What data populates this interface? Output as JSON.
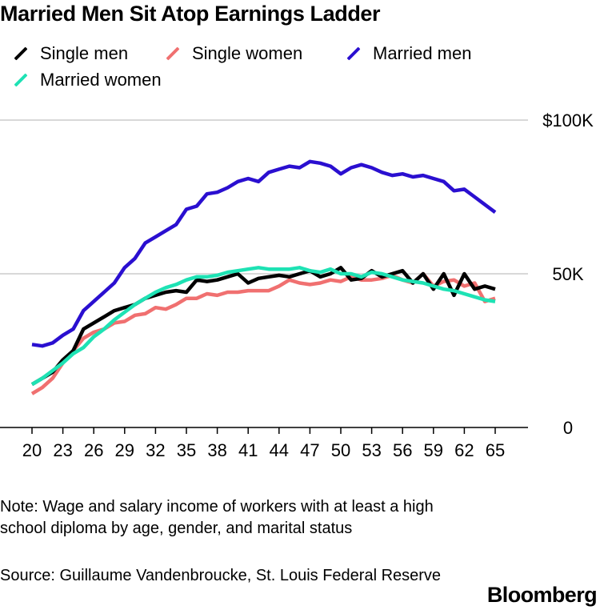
{
  "title": "Married Men Sit Atop Earnings Ladder",
  "note": "Note: Wage and salary income of workers with at least a high school diploma by age, gender, and marital status",
  "source": "Source: Guillaume Vandenbroucke, St. Louis Federal Reserve",
  "brand": "Bloomberg",
  "colors": {
    "single_men": "#000000",
    "single_women": "#f07070",
    "married_men": "#2a0fd0",
    "married_women": "#1ee2b4",
    "grid": "#cccccc",
    "axis": "#000000"
  },
  "chart_data": {
    "type": "line",
    "title": "Married Men Sit Atop Earnings Ladder",
    "xlabel": "",
    "ylabel": "",
    "xlim": [
      20,
      65
    ],
    "ylim": [
      0,
      100000
    ],
    "x_ticks": [
      20,
      23,
      26,
      29,
      32,
      35,
      38,
      41,
      44,
      47,
      50,
      53,
      56,
      59,
      62,
      65
    ],
    "y_ticks": [
      0,
      50000,
      100000
    ],
    "y_tick_labels": [
      "0",
      "50K",
      "$100K"
    ],
    "y_axis_position": "right",
    "grid": true,
    "legend": "top-left",
    "x": [
      20,
      21,
      22,
      23,
      24,
      25,
      26,
      27,
      28,
      29,
      30,
      31,
      32,
      33,
      34,
      35,
      36,
      37,
      38,
      39,
      40,
      41,
      42,
      43,
      44,
      45,
      46,
      47,
      48,
      49,
      50,
      51,
      52,
      53,
      54,
      55,
      56,
      57,
      58,
      59,
      60,
      61,
      62,
      63,
      64,
      65
    ],
    "series": [
      {
        "name": "Single men",
        "color": "#000000",
        "values": [
          14000,
          16000,
          18000,
          22000,
          25000,
          32000,
          34000,
          36000,
          38000,
          39000,
          40000,
          42000,
          43000,
          44000,
          44500,
          44000,
          48000,
          47500,
          48000,
          49000,
          50000,
          47000,
          48500,
          49000,
          49500,
          49000,
          50000,
          51000,
          49000,
          50000,
          52000,
          48000,
          48500,
          51000,
          49000,
          50000,
          51000,
          47000,
          50000,
          45000,
          50000,
          43000,
          50000,
          45000,
          46000,
          45000
        ],
        "keys": "single_men"
      },
      {
        "name": "Single women",
        "color": "#f07070",
        "values": [
          11000,
          13000,
          16000,
          21000,
          25000,
          29000,
          31000,
          32000,
          34000,
          34500,
          36500,
          37000,
          39000,
          38500,
          40000,
          42000,
          42000,
          43500,
          43000,
          44000,
          44000,
          44500,
          44500,
          44500,
          46000,
          48000,
          47000,
          46500,
          47000,
          48000,
          47500,
          49000,
          48000,
          48000,
          48500,
          49500,
          48000,
          47000,
          50000,
          46000,
          47500,
          48000,
          46000,
          47000,
          41000,
          42000
        ]
      },
      {
        "name": "Married men",
        "color": "#2a0fd0",
        "values": [
          27000,
          26500,
          27500,
          30000,
          32000,
          38000,
          41000,
          44000,
          47000,
          52000,
          55000,
          60000,
          62000,
          64000,
          66000,
          71000,
          72000,
          76000,
          76500,
          78000,
          80000,
          81000,
          80000,
          83000,
          84000,
          85000,
          84500,
          86500,
          86000,
          85000,
          82500,
          84500,
          85500,
          84500,
          83000,
          82000,
          82500,
          81500,
          82000,
          81000,
          80000,
          77000,
          77500,
          75000,
          72500,
          70000
        ]
      },
      {
        "name": "Married women",
        "color": "#1ee2b4",
        "values": [
          14000,
          16000,
          18500,
          21000,
          24000,
          26000,
          29500,
          32000,
          35000,
          37500,
          40000,
          42000,
          44000,
          45500,
          46500,
          48000,
          49000,
          49000,
          49500,
          50500,
          51000,
          51500,
          52000,
          51500,
          51500,
          51500,
          52000,
          51000,
          50500,
          51500,
          50000,
          50000,
          49000,
          50500,
          50000,
          49000,
          48000,
          47500,
          47000,
          46000,
          45000,
          44500,
          43500,
          42500,
          41500,
          41000
        ]
      }
    ]
  }
}
